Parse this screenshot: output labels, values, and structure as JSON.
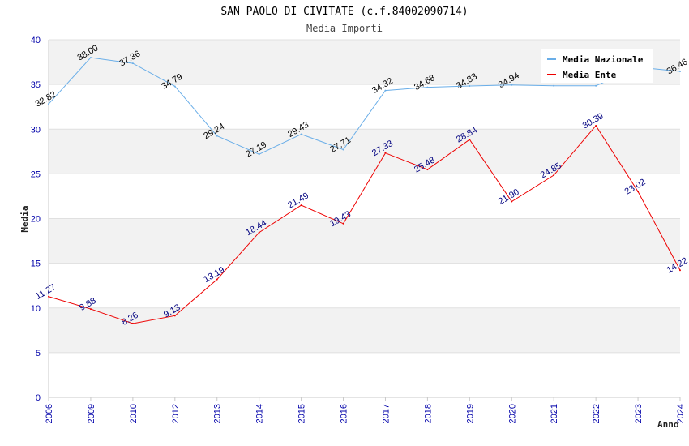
{
  "chart_data": {
    "type": "line",
    "title": "SAN PAOLO DI CIVITATE (c.f.84002090714)",
    "subtitle": "Media Importi",
    "xlabel": "Anno",
    "ylabel": "Media",
    "ylim": [
      0,
      40
    ],
    "yticks": [
      0,
      5,
      10,
      15,
      20,
      25,
      30,
      35,
      40
    ],
    "categories": [
      "2006",
      "2009",
      "2010",
      "2012",
      "2013",
      "2014",
      "2015",
      "2016",
      "2017",
      "2018",
      "2019",
      "2020",
      "2021",
      "2022",
      "2023",
      "2024"
    ],
    "legend_position": "top-right",
    "grid": true,
    "series": [
      {
        "name": "Media Nazionale",
        "color": "#6aaee8",
        "values": [
          32.82,
          38.0,
          37.36,
          34.79,
          29.24,
          27.19,
          29.43,
          27.71,
          34.32,
          34.68,
          34.83,
          34.94,
          34.85,
          34.85,
          36.93,
          36.46
        ],
        "labels": [
          "32.82",
          "38.00",
          "37.36",
          "34.79",
          "29.24",
          "27.19",
          "29.43",
          "27.71",
          "34.32",
          "34.68",
          "34.83",
          "34.94",
          "",
          "",
          "",
          "36.46"
        ]
      },
      {
        "name": "Media Ente",
        "color": "#ee0000",
        "values": [
          11.27,
          9.88,
          8.26,
          9.13,
          13.19,
          18.44,
          21.49,
          19.43,
          27.33,
          25.48,
          28.84,
          21.9,
          24.85,
          30.39,
          23.02,
          14.22
        ],
        "labels": [
          "11.27",
          "9.88",
          "8.26",
          "9.13",
          "13.19",
          "18.44",
          "21.49",
          "19.43",
          "27.33",
          "25.48",
          "28.84",
          "21.90",
          "24.85",
          "30.39",
          "23.02",
          "14.22"
        ]
      }
    ]
  }
}
